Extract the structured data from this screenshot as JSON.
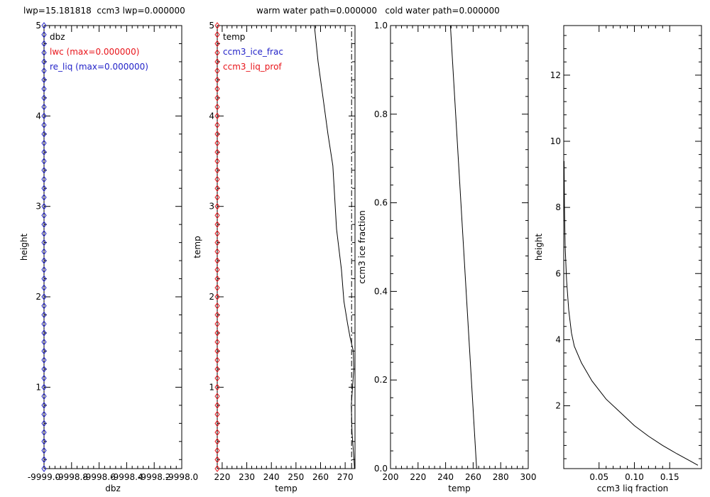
{
  "header": {
    "lwp_text": "lwp=15.181818  ccm3 lwp=0.000000",
    "water_text": "warm water path=0.000000   cold water path=0.000000"
  },
  "colors": {
    "axis": "#000000",
    "red": "#e8141a",
    "blue": "#2222c8"
  },
  "chart_data": [
    {
      "type": "line",
      "xlabel": "dbz",
      "ylabel": "height",
      "xlim": [
        -9999.0,
        -9998.0
      ],
      "ylim": [
        0.1,
        5.0
      ],
      "xticks": [
        -9999.0,
        -9998.8,
        -9998.6,
        -9998.4,
        -9998.2,
        -9998.0
      ],
      "xtick_labels": [
        "-9999.0",
        "-9998.8",
        "-9998.6",
        "-9998.4",
        "-9998.2",
        "-9998.0"
      ],
      "yticks": [
        1,
        2,
        3,
        4,
        5
      ],
      "ytick_labels": [
        "1",
        "2",
        "3",
        "4",
        "5"
      ],
      "legend": [
        {
          "text": "dbz",
          "color": "#000000"
        },
        {
          "text": "lwc (max=0.000000)",
          "color": "#e8141a"
        },
        {
          "text": "re_liq (max=0.000000)",
          "color": "#2222c8"
        }
      ],
      "series": [
        {
          "color": "#2222c8",
          "marker": "diamond",
          "x": -9999.0,
          "y_from": 0.1,
          "y_to": 5.0,
          "count": 50
        }
      ]
    },
    {
      "type": "line",
      "xlabel": "temp",
      "ylabel": "temp",
      "xlim": [
        218,
        274
      ],
      "ylim": [
        0.1,
        5.0
      ],
      "xticks": [
        220,
        230,
        240,
        250,
        260,
        270
      ],
      "xtick_labels": [
        "220",
        "230",
        "240",
        "250",
        "260",
        "270"
      ],
      "yticks": [
        1,
        2,
        3,
        4,
        5
      ],
      "ytick_labels": [
        "1",
        "2",
        "3",
        "4",
        "5"
      ],
      "legend": [
        {
          "text": "temp",
          "color": "#000000"
        },
        {
          "text": "ccm3_ice_frac",
          "color": "#2222c8"
        },
        {
          "text": "ccm3_liq_prof",
          "color": "#e8141a"
        }
      ],
      "series": [
        {
          "color": "#000000",
          "points": [
            [
              257.5,
              5.0
            ],
            [
              259,
              4.6
            ],
            [
              261,
              4.2
            ],
            [
              263,
              3.8
            ],
            [
              265,
              3.45
            ],
            [
              266.5,
              2.75
            ],
            [
              268.5,
              2.3
            ],
            [
              269.5,
              1.95
            ],
            [
              271,
              1.7
            ],
            [
              272,
              1.55
            ],
            [
              273.3,
              1.4
            ],
            [
              273.5,
              1.2
            ],
            [
              273,
              1.0
            ],
            [
              272.5,
              0.8
            ],
            [
              272.8,
              0.5
            ],
            [
              273.6,
              0.2
            ],
            [
              273.8,
              0.1
            ]
          ]
        },
        {
          "color": "#000000",
          "dash": "dashdot",
          "points": [
            [
              272.6,
              0.1
            ],
            [
              272.6,
              5.0
            ]
          ]
        },
        {
          "color": "#e8141a",
          "marker": "diamond",
          "x": 218,
          "y_from": 0.1,
          "y_to": 5.0,
          "count": 50
        }
      ]
    },
    {
      "type": "line",
      "xlabel": "temp",
      "ylabel": "ccm3 ice fraction",
      "xlim": [
        200,
        300
      ],
      "ylim": [
        0.0,
        1.0
      ],
      "xticks": [
        200,
        220,
        240,
        260,
        280,
        300
      ],
      "xtick_labels": [
        "200",
        "220",
        "240",
        "260",
        "280",
        "300"
      ],
      "yticks": [
        0.0,
        0.2,
        0.4,
        0.6,
        0.8,
        1.0
      ],
      "ytick_labels": [
        "0.0",
        "0.2",
        "0.4",
        "0.6",
        "0.8",
        "1.0"
      ],
      "series": [
        {
          "color": "#000000",
          "points": [
            [
              243.5,
              1.0
            ],
            [
              262.5,
              0.0
            ]
          ]
        }
      ]
    },
    {
      "type": "line",
      "xlabel": "ccm3 liq fraction",
      "ylabel": "height",
      "xlim": [
        0.0,
        0.195
      ],
      "ylim": [
        0.1,
        13.5
      ],
      "xticks": [
        0.05,
        0.1,
        0.15
      ],
      "xtick_labels": [
        "0.05",
        "0.10",
        "0.15"
      ],
      "yticks": [
        2,
        4,
        6,
        8,
        10,
        12
      ],
      "ytick_labels": [
        "2",
        "4",
        "6",
        "8",
        "10",
        "12"
      ],
      "series": [
        {
          "color": "#000000",
          "points": [
            [
              0.0005,
              9.4
            ],
            [
              0.001,
              8.0
            ],
            [
              0.002,
              6.8
            ],
            [
              0.004,
              5.8
            ],
            [
              0.007,
              4.9
            ],
            [
              0.011,
              4.2
            ],
            [
              0.015,
              3.8
            ],
            [
              0.025,
              3.3
            ],
            [
              0.04,
              2.75
            ],
            [
              0.06,
              2.2
            ],
            [
              0.08,
              1.8
            ],
            [
              0.1,
              1.4
            ],
            [
              0.12,
              1.08
            ],
            [
              0.14,
              0.8
            ],
            [
              0.16,
              0.55
            ],
            [
              0.18,
              0.32
            ],
            [
              0.19,
              0.2
            ]
          ]
        }
      ]
    }
  ]
}
